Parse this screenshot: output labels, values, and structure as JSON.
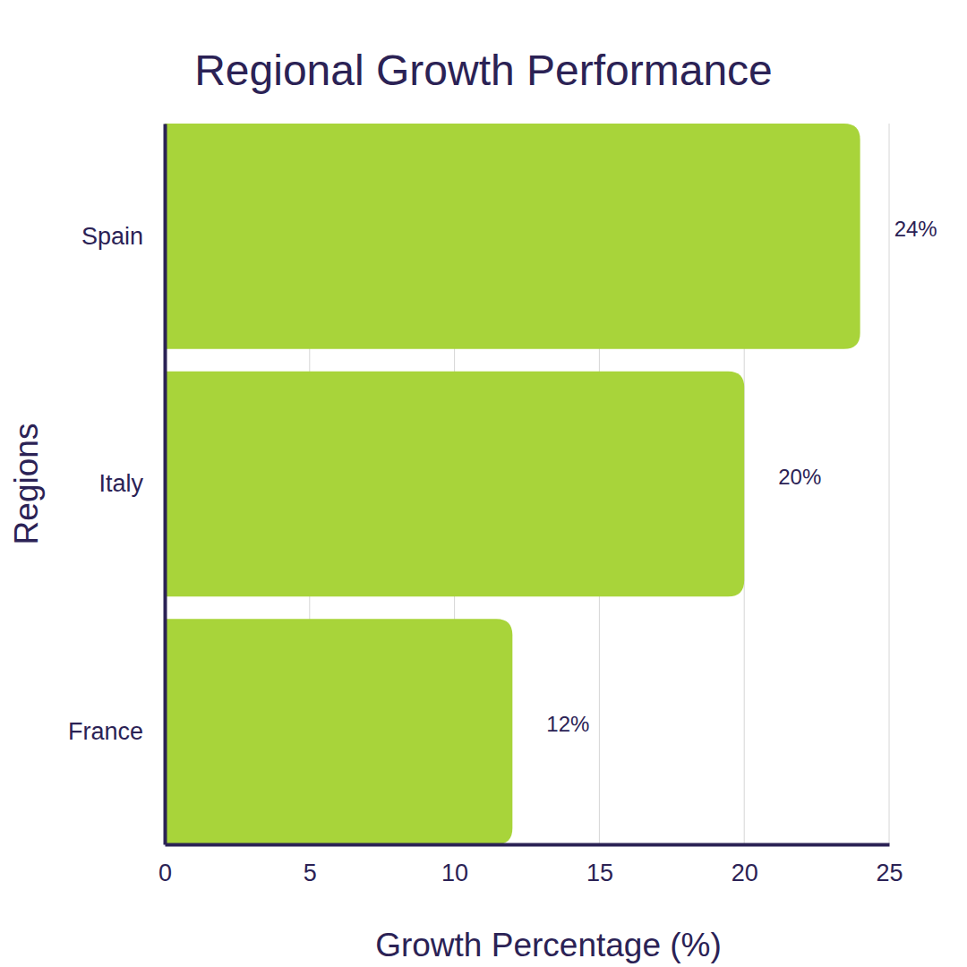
{
  "chart_data": {
    "type": "bar",
    "orientation": "horizontal",
    "title": "Regional Growth Performance",
    "xlabel": "Growth Percentage (%)",
    "ylabel": "Regions",
    "categories": [
      "Spain",
      "Italy",
      "France"
    ],
    "values": [
      24,
      20,
      12
    ],
    "value_labels": [
      "24%",
      "20%",
      "12%"
    ],
    "color": "#a8d43a",
    "xlim": [
      0,
      25
    ],
    "xticks": [
      0,
      5,
      10,
      15,
      20,
      25
    ],
    "grid": true,
    "data_labels": true
  }
}
